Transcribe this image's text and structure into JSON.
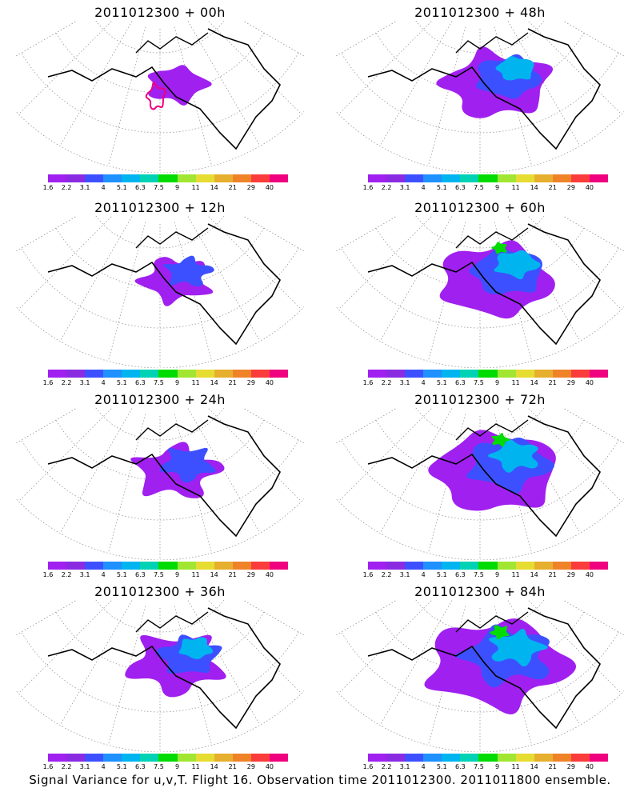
{
  "panels": [
    {
      "title": "2011012300 + 00h",
      "hour": 0
    },
    {
      "title": "2011012300 + 48h",
      "hour": 48
    },
    {
      "title": "2011012300 + 12h",
      "hour": 12
    },
    {
      "title": "2011012300 + 60h",
      "hour": 60
    },
    {
      "title": "2011012300 + 24h",
      "hour": 24
    },
    {
      "title": "2011012300 + 72h",
      "hour": 72
    },
    {
      "title": "2011012300 + 36h",
      "hour": 36
    },
    {
      "title": "2011012300 + 84h",
      "hour": 84
    }
  ],
  "colorbar": {
    "labels": [
      "1.6",
      "2.2",
      "3.1",
      "4",
      "5.1",
      "6.3",
      "7.5",
      "9",
      "11",
      "14",
      "21",
      "29",
      "40"
    ],
    "colors": [
      "#a020f0",
      "#8a2be2",
      "#3c50ff",
      "#1e90ff",
      "#00b4f0",
      "#00d2b4",
      "#00dc00",
      "#a0e632",
      "#e6dc32",
      "#e6af2d",
      "#f08228",
      "#fa3c3c",
      "#f0007f"
    ]
  },
  "footer": "Signal Variance for u,v,T. Flight 16. Observation time 2011012300. 2011011800 ensemble."
}
